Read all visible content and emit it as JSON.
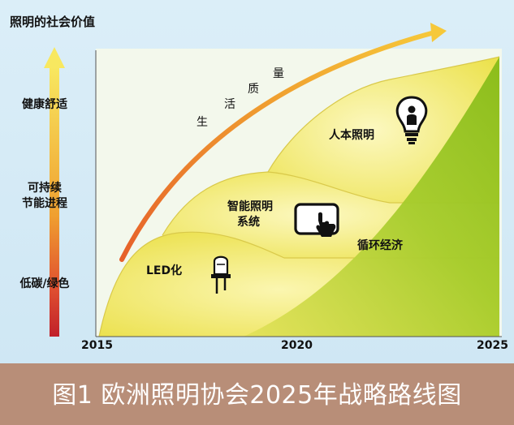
{
  "y_axis": {
    "title": "照明的社会价值",
    "levels": [
      {
        "label": "健康舒适"
      },
      {
        "label": "可持续节能进程",
        "lines": [
          "可持续",
          "节能进程"
        ]
      },
      {
        "label": "低碳/绿色"
      }
    ]
  },
  "x_axis": {
    "ticks": [
      "2015",
      "2020",
      "2025"
    ]
  },
  "arrow_text": [
    "生",
    "活",
    "质",
    "量"
  ],
  "stages": {
    "led": "LED化",
    "smart": [
      "智能照明",
      "系统"
    ],
    "human": "人本照明",
    "circular": "循环经济"
  },
  "caption": "图1 欧洲照明协会2025年战略路线图",
  "icons": [
    "led-bulb-icon",
    "touchscreen-hand-icon",
    "person-bulb-icon"
  ],
  "colors": {
    "background": "#d8ecf6",
    "yellow": "#f6ee70",
    "green": "#9cc824",
    "arrow_orange": "#e8872a",
    "caption_bar": "#b88e78"
  }
}
